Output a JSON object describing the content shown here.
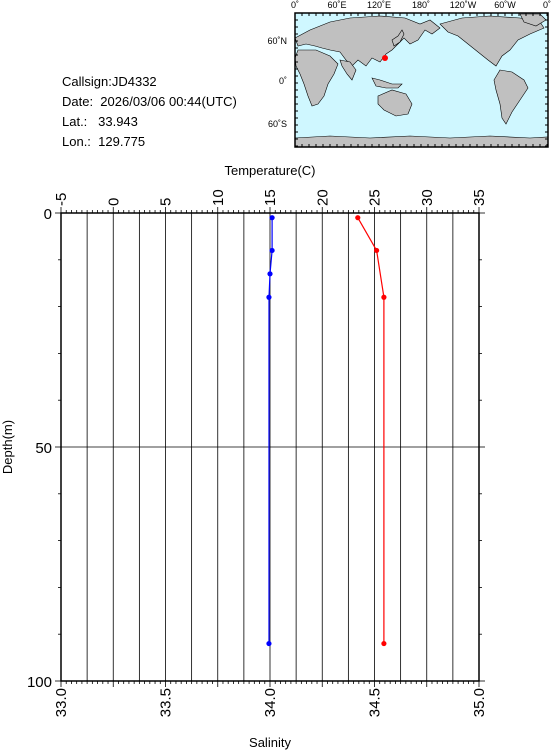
{
  "station": {
    "callsign": "Callsign:JD4332",
    "date": "Date:  2026/03/06 00:44(UTC)",
    "lat": "Lat.:   33.943",
    "lon": "Lon.:  129.775"
  },
  "map": {
    "lon_labels": [
      "0˚",
      "60˚E",
      "120˚E",
      "180˚",
      "120˚W",
      "60˚W",
      "0˚"
    ],
    "lat_labels": [
      "60˚N",
      "0˚",
      "60˚S"
    ],
    "marker_color": "#ff0000",
    "ocean_color": "#cff7ff",
    "land_color": "#c0c0c0"
  },
  "chart_data": {
    "type": "line",
    "title": "",
    "top_axis": {
      "label": "Temperature(C)",
      "range": [
        -5,
        35
      ],
      "ticks": [
        "-5",
        "0",
        "5",
        "10",
        "15",
        "20",
        "25",
        "30",
        "35"
      ]
    },
    "bottom_axis": {
      "label": "Salinity",
      "range": [
        33.0,
        35.0
      ],
      "ticks": [
        "33.0",
        "33.5",
        "34.0",
        "34.5",
        "35.0"
      ]
    },
    "y_axis": {
      "label": "Depth(m)",
      "range": [
        0,
        100
      ],
      "inverted": true,
      "ticks": [
        "0",
        "50",
        "100"
      ]
    },
    "grid": true,
    "series": [
      {
        "name": "Temperature",
        "axis": "top",
        "color": "#ff0000",
        "points": [
          [
            23.4,
            1
          ],
          [
            25.2,
            8
          ],
          [
            25.9,
            18
          ],
          [
            25.9,
            92
          ]
        ]
      },
      {
        "name": "Salinity",
        "axis": "bottom",
        "color": "#0000ff",
        "points": [
          [
            34.01,
            1
          ],
          [
            34.01,
            8
          ],
          [
            34.0,
            13
          ],
          [
            33.995,
            18
          ],
          [
            33.995,
            92
          ]
        ]
      }
    ]
  }
}
